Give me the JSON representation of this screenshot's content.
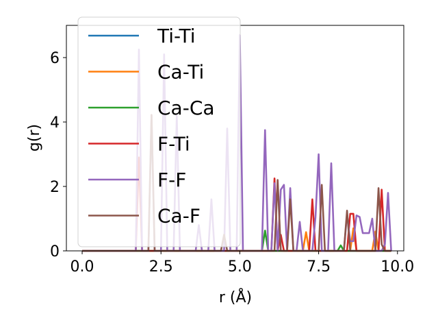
{
  "chart_data": {
    "type": "line",
    "xlabel": "r (Å)",
    "ylabel": "g(r)",
    "xlim": [
      -0.5,
      10.2
    ],
    "ylim": [
      0,
      7.0
    ],
    "xticks": [
      0.0,
      2.5,
      5.0,
      7.5,
      10.0
    ],
    "xtick_labels": [
      "0.0",
      "2.5",
      "5.0",
      "7.5",
      "10.0"
    ],
    "yticks": [
      0,
      2,
      4,
      6
    ],
    "ytick_labels": [
      "0",
      "2",
      "4",
      "6"
    ],
    "grid": false,
    "legend_position": "upper-left",
    "series": [
      {
        "name": "Ti-Ti",
        "color": "#1f77b4",
        "points": [
          [
            0,
            0
          ],
          [
            9.8,
            0
          ]
        ]
      },
      {
        "name": "Ca-Ti",
        "color": "#ff7f0e",
        "points": [
          [
            0,
            0
          ],
          [
            7.0,
            0
          ],
          [
            7.1,
            0.58
          ],
          [
            7.2,
            0
          ],
          [
            8.5,
            0
          ],
          [
            8.6,
            0.7
          ],
          [
            8.7,
            0
          ],
          [
            9.2,
            0
          ],
          [
            9.3,
            0.6
          ],
          [
            9.4,
            0
          ],
          [
            9.8,
            0
          ]
        ]
      },
      {
        "name": "Ca-Ca",
        "color": "#2ca02c",
        "points": [
          [
            0,
            0
          ],
          [
            5.7,
            0
          ],
          [
            5.8,
            0.63
          ],
          [
            5.9,
            0
          ],
          [
            8.1,
            0
          ],
          [
            8.2,
            0.17
          ],
          [
            8.3,
            0
          ],
          [
            9.8,
            0
          ]
        ]
      },
      {
        "name": "F-Ti",
        "color": "#d62728",
        "points": [
          [
            0,
            0
          ],
          [
            1.7,
            0
          ],
          [
            1.8,
            2.9
          ],
          [
            1.9,
            0
          ],
          [
            6.0,
            0
          ],
          [
            6.1,
            2.25
          ],
          [
            6.2,
            0
          ],
          [
            6.3,
            0.5
          ],
          [
            6.4,
            0
          ],
          [
            7.2,
            0
          ],
          [
            7.3,
            1.6
          ],
          [
            7.4,
            0
          ],
          [
            8.4,
            0
          ],
          [
            8.5,
            1.15
          ],
          [
            8.6,
            1.15
          ],
          [
            8.7,
            0
          ],
          [
            9.4,
            0
          ],
          [
            9.5,
            1.9
          ],
          [
            9.6,
            0
          ],
          [
            9.8,
            0
          ]
        ]
      },
      {
        "name": "F-F",
        "color": "#9467bd",
        "points": [
          [
            0,
            0
          ],
          [
            1.7,
            0
          ],
          [
            1.8,
            6.25
          ],
          [
            1.9,
            0
          ],
          [
            2.1,
            0
          ],
          [
            2.2,
            4.22
          ],
          [
            2.3,
            0
          ],
          [
            2.5,
            0
          ],
          [
            2.6,
            6.1
          ],
          [
            2.7,
            0
          ],
          [
            2.9,
            0
          ],
          [
            3.0,
            4.2
          ],
          [
            3.1,
            0
          ],
          [
            3.6,
            0
          ],
          [
            3.7,
            0.8
          ],
          [
            3.8,
            0
          ],
          [
            4.0,
            0
          ],
          [
            4.1,
            1.6
          ],
          [
            4.2,
            0
          ],
          [
            4.5,
            0
          ],
          [
            4.6,
            3.8
          ],
          [
            4.7,
            0
          ],
          [
            4.9,
            0
          ],
          [
            5.0,
            6.7
          ],
          [
            5.1,
            0
          ],
          [
            5.7,
            0
          ],
          [
            5.8,
            3.75
          ],
          [
            5.9,
            0
          ],
          [
            6.0,
            0
          ],
          [
            6.1,
            2.1
          ],
          [
            6.2,
            0
          ],
          [
            6.3,
            1.9
          ],
          [
            6.4,
            2.05
          ],
          [
            6.5,
            0
          ],
          [
            6.6,
            1.95
          ],
          [
            6.7,
            0
          ],
          [
            6.8,
            0
          ],
          [
            6.9,
            0.9
          ],
          [
            7.0,
            0
          ],
          [
            7.3,
            0
          ],
          [
            7.4,
            1.05
          ],
          [
            7.5,
            3.0
          ],
          [
            7.6,
            0
          ],
          [
            7.8,
            0
          ],
          [
            7.9,
            2.72
          ],
          [
            8.0,
            0
          ],
          [
            8.3,
            0
          ],
          [
            8.4,
            1.15
          ],
          [
            8.5,
            0.3
          ],
          [
            8.6,
            0.3
          ],
          [
            8.7,
            1.1
          ],
          [
            8.8,
            1.05
          ],
          [
            8.9,
            0.55
          ],
          [
            9.0,
            0.55
          ],
          [
            9.1,
            0.55
          ],
          [
            9.2,
            1.0
          ],
          [
            9.3,
            0
          ],
          [
            9.5,
            0
          ],
          [
            9.6,
            0.2
          ],
          [
            9.7,
            1.8
          ],
          [
            9.8,
            0
          ]
        ]
      },
      {
        "name": "Ca-F",
        "color": "#8c564b",
        "points": [
          [
            0,
            0
          ],
          [
            2.1,
            0
          ],
          [
            2.2,
            4.22
          ],
          [
            2.3,
            0
          ],
          [
            4.4,
            0
          ],
          [
            4.5,
            0.5
          ],
          [
            4.6,
            0
          ],
          [
            6.1,
            0
          ],
          [
            6.2,
            2.2
          ],
          [
            6.3,
            0
          ],
          [
            6.5,
            0
          ],
          [
            6.6,
            1.6
          ],
          [
            6.7,
            0
          ],
          [
            7.5,
            0
          ],
          [
            7.6,
            2.05
          ],
          [
            7.7,
            0
          ],
          [
            8.3,
            0
          ],
          [
            8.4,
            1.25
          ],
          [
            8.5,
            0
          ],
          [
            9.3,
            0
          ],
          [
            9.4,
            1.95
          ],
          [
            9.5,
            0.2
          ],
          [
            9.6,
            0
          ],
          [
            9.8,
            0
          ]
        ]
      }
    ]
  }
}
